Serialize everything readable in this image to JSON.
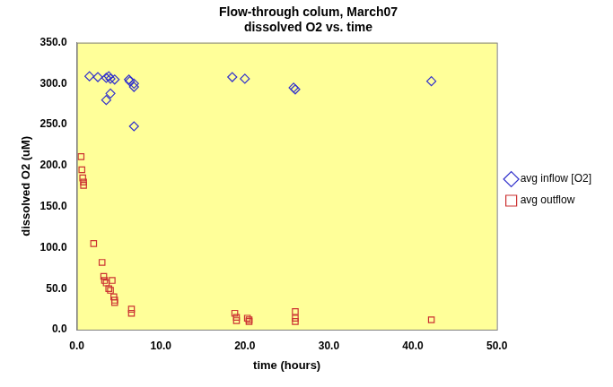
{
  "chart_data": {
    "type": "scatter",
    "title": [
      "Flow-through colum, March07",
      "dissolved O2 vs. time"
    ],
    "x_label": "time (hours)",
    "y_label": "dissolved O2 (uM)",
    "xlim": [
      0,
      50
    ],
    "ylim": [
      0,
      350
    ],
    "xticks": [
      {
        "value": 0,
        "label": "0.0"
      },
      {
        "value": 10,
        "label": "10.0"
      },
      {
        "value": 20,
        "label": "20.0"
      },
      {
        "value": 30,
        "label": "30.0"
      },
      {
        "value": 40,
        "label": "40.0"
      },
      {
        "value": 50,
        "label": "50.0"
      }
    ],
    "yticks": [
      {
        "value": 0,
        "label": "0.0"
      },
      {
        "value": 50,
        "label": "50.0"
      },
      {
        "value": 100,
        "label": "100.0"
      },
      {
        "value": 150,
        "label": "150.0"
      },
      {
        "value": 200,
        "label": "200.0"
      },
      {
        "value": 250,
        "label": "250.0"
      },
      {
        "value": 300,
        "label": "300.0"
      },
      {
        "value": 350,
        "label": "350.0"
      }
    ],
    "grid": false,
    "legend": "right",
    "series": [
      {
        "name": "avg inflow [O2]",
        "color": "#3333cc",
        "marker": "diamond",
        "x": [
          1.5,
          2.5,
          3.5,
          3.5,
          3.8,
          4.0,
          4.0,
          4.5,
          6.2,
          6.3,
          6.8,
          6.8,
          6.8,
          18.5,
          20.0,
          25.8,
          26.0,
          42.2
        ],
        "values": [
          309,
          308,
          307,
          280,
          309,
          306,
          288,
          305,
          305,
          303,
          300,
          296,
          248,
          308,
          306,
          295,
          293,
          303
        ]
      },
      {
        "name": "avg outflow",
        "color": "#cc3333",
        "marker": "square",
        "x": [
          0.5,
          0.6,
          0.7,
          0.8,
          0.8,
          2.0,
          3.0,
          3.2,
          3.3,
          3.5,
          3.8,
          4.0,
          4.2,
          4.4,
          4.5,
          4.5,
          6.5,
          6.5,
          18.8,
          19.0,
          19.0,
          20.3,
          20.5,
          20.5,
          26.0,
          26.0,
          26.0,
          42.2
        ],
        "values": [
          211,
          195,
          185,
          180,
          176,
          105,
          82,
          65,
          60,
          57,
          50,
          48,
          60,
          40,
          36,
          33,
          25,
          20,
          20,
          15,
          11,
          14,
          12,
          10,
          22,
          14,
          10,
          12
        ]
      }
    ]
  }
}
